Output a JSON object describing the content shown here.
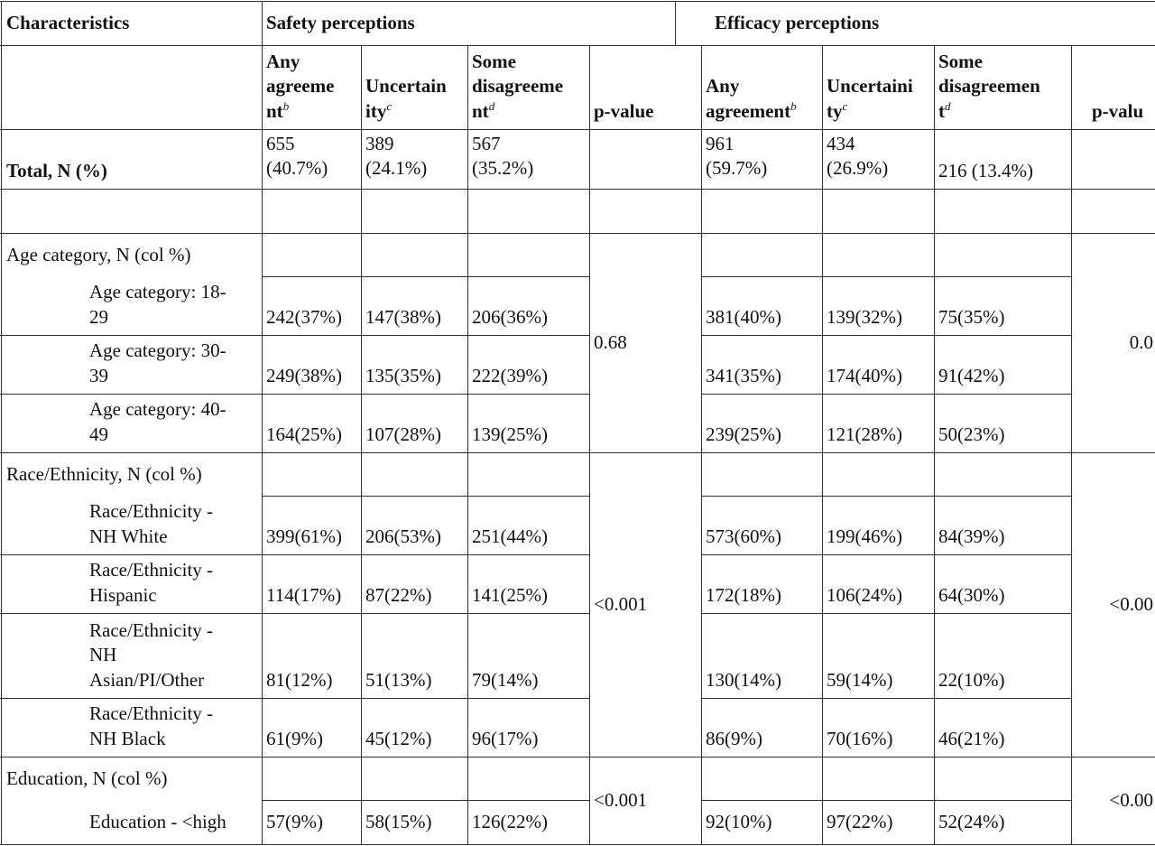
{
  "header": {
    "characteristics": "Characteristics",
    "safety_group": "Safety perceptions",
    "efficacy_group": "Efficacy perceptions"
  },
  "columns": {
    "safety": {
      "any_agreement": "Any\nagreeme\nnt",
      "any_agreement_sup": "b",
      "uncertainty": "Uncertain\nity",
      "uncertainty_sup": "c",
      "some_disagreement": "Some\ndisagreeme\nnt",
      "some_disagreement_sup": "d",
      "p_value": "p-value"
    },
    "efficacy": {
      "any_agreement": "Any\nagreement",
      "any_agreement_sup": "b",
      "uncertainty": "Uncertaini\nty",
      "uncertainty_sup": "c",
      "some_disagreement": "Some\ndisagreemen\nt",
      "some_disagreement_sup": "d",
      "p_value": "p-valu"
    }
  },
  "total": {
    "label": "Total, N (%)",
    "s1": "655\n(40.7%)",
    "s2": "389\n(24.1%)",
    "s3": "567\n(35.2%)",
    "e1": "961\n(59.7%)",
    "e2": "434\n(26.9%)",
    "e3": "216 (13.4%)"
  },
  "age": {
    "header": "Age category, N (col %)",
    "p_safety": "0.68",
    "p_efficacy": "0.0",
    "rows": [
      {
        "label": "Age category: 18-\n29",
        "s1": "242(37%)",
        "s2": "147(38%)",
        "s3": "206(36%)",
        "e1": "381(40%)",
        "e2": "139(32%)",
        "e3": "75(35%)"
      },
      {
        "label": "Age category: 30-\n39",
        "s1": "249(38%)",
        "s2": "135(35%)",
        "s3": "222(39%)",
        "e1": "341(35%)",
        "e2": "174(40%)",
        "e3": "91(42%)"
      },
      {
        "label": "Age category: 40-\n49",
        "s1": "164(25%)",
        "s2": "107(28%)",
        "s3": "139(25%)",
        "e1": "239(25%)",
        "e2": "121(28%)",
        "e3": "50(23%)"
      }
    ]
  },
  "race": {
    "header": "Race/Ethnicity, N (col %)",
    "p_safety": "<0.001",
    "p_efficacy": "<0.00",
    "rows": [
      {
        "label": "Race/Ethnicity -\nNH White",
        "s1": "399(61%)",
        "s2": "206(53%)",
        "s3": "251(44%)",
        "e1": "573(60%)",
        "e2": "199(46%)",
        "e3": "84(39%)"
      },
      {
        "label": "Race/Ethnicity -\nHispanic",
        "s1": "114(17%)",
        "s2": "87(22%)",
        "s3": "141(25%)",
        "e1": "172(18%)",
        "e2": "106(24%)",
        "e3": "64(30%)"
      },
      {
        "label": "Race/Ethnicity -\nNH\nAsian/PI/Other",
        "s1": "81(12%)",
        "s2": "51(13%)",
        "s3": "79(14%)",
        "e1": "130(14%)",
        "e2": "59(14%)",
        "e3": "22(10%)"
      },
      {
        "label": "Race/Ethnicity -\nNH Black",
        "s1": "61(9%)",
        "s2": "45(12%)",
        "s3": "96(17%)",
        "e1": "86(9%)",
        "e2": "70(16%)",
        "e3": "46(21%)"
      }
    ]
  },
  "education": {
    "header": "Education, N (col %)",
    "p_safety": "<0.001",
    "p_efficacy": "<0.00",
    "rows": [
      {
        "label": "Education - <high",
        "s1": "57(9%)",
        "s2": "58(15%)",
        "s3": "126(22%)",
        "e1": "92(10%)",
        "e2": "97(22%)",
        "e3": "52(24%)"
      }
    ]
  }
}
